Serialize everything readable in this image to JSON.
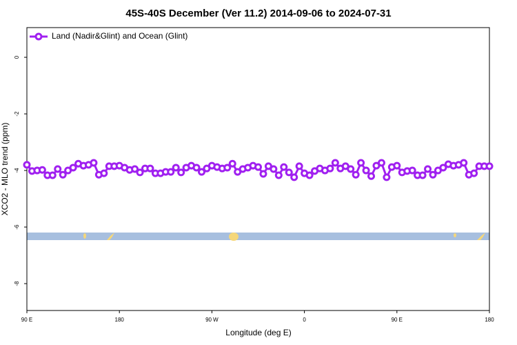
{
  "chart_data": {
    "type": "line",
    "title": "45S-40S December (Ver 11.2)   2014-09-06 to 2024-07-31",
    "x_label": "Longitude (deg E)",
    "y_label": "XCO2 - MLO trend (ppm)",
    "xlim": [
      90,
      540
    ],
    "ylim": [
      -8.95,
      1.05
    ],
    "xticks": [
      {
        "value": 90,
        "label": "90 E"
      },
      {
        "value": 180,
        "label": "180"
      },
      {
        "value": 270,
        "label": "90 W"
      },
      {
        "value": 360,
        "label": "0"
      },
      {
        "value": 450,
        "label": "90 E"
      },
      {
        "value": 540,
        "label": "180"
      }
    ],
    "yticks": [
      0,
      -2,
      -4,
      -6,
      -8
    ],
    "legend": "top-left",
    "x": [
      90,
      95,
      100,
      105,
      110,
      115,
      120,
      125,
      130,
      135,
      140,
      145,
      150,
      155,
      160,
      165,
      170,
      175,
      180,
      185,
      190,
      195,
      200,
      205,
      210,
      215,
      220,
      225,
      230,
      235,
      240,
      245,
      250,
      255,
      260,
      265,
      270,
      275,
      280,
      285,
      290,
      295,
      300,
      305,
      310,
      315,
      320,
      325,
      330,
      335,
      340,
      345,
      350,
      355,
      360,
      365,
      370,
      375,
      380,
      385,
      390,
      395,
      400,
      405,
      410,
      415,
      420,
      425,
      430,
      435,
      440,
      445,
      450,
      455,
      460,
      465,
      470,
      475,
      480,
      485,
      490,
      495,
      500,
      505,
      510,
      515,
      520,
      525,
      530,
      535,
      540
    ],
    "series": [
      {
        "name": "Land (Nadir&Glint) and Ocean (Glint)",
        "color": "#a020f0",
        "values": [
          -3.8,
          -4.02,
          -4.0,
          -3.98,
          -4.17,
          -4.17,
          -3.95,
          -4.15,
          -4.0,
          -3.9,
          -3.76,
          -3.83,
          -3.8,
          -3.73,
          -4.15,
          -4.1,
          -3.85,
          -3.85,
          -3.83,
          -3.9,
          -3.98,
          -3.95,
          -4.07,
          -3.93,
          -3.93,
          -4.1,
          -4.1,
          -4.05,
          -4.05,
          -3.9,
          -4.07,
          -3.9,
          -3.83,
          -3.9,
          -4.05,
          -3.93,
          -3.83,
          -3.88,
          -3.93,
          -3.9,
          -3.76,
          -4.05,
          -3.95,
          -3.9,
          -3.83,
          -3.88,
          -4.12,
          -3.85,
          -3.95,
          -4.17,
          -3.88,
          -4.07,
          -4.24,
          -3.85,
          -4.1,
          -4.17,
          -4.02,
          -3.93,
          -4.0,
          -3.93,
          -3.73,
          -3.93,
          -3.85,
          -3.95,
          -4.15,
          -3.73,
          -4.0,
          -4.2,
          -3.83,
          -3.73,
          -4.24,
          -3.88,
          -3.83,
          -4.07,
          -4.02,
          -4.0,
          -4.17,
          -4.17,
          -3.95,
          -4.15,
          -4.0,
          -3.9,
          -3.78,
          -3.83,
          -3.8,
          -3.73,
          -4.15,
          -4.1,
          -3.85,
          -3.85,
          -3.85
        ]
      }
    ]
  }
}
